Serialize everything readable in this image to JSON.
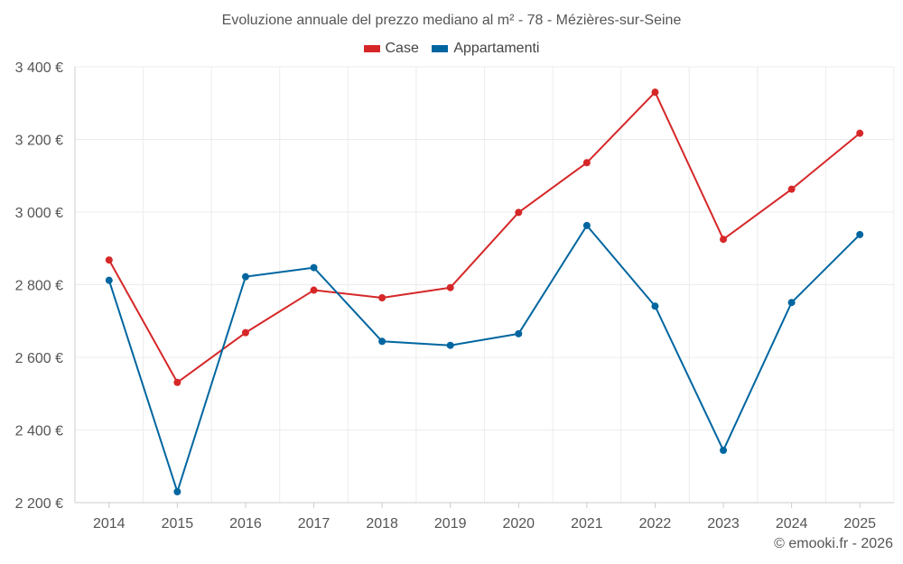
{
  "chart_data": {
    "type": "line",
    "title": "Evoluzione annuale del prezzo mediano al m² - 78 - Mézières-sur-Seine",
    "categories": [
      "2014",
      "2015",
      "2016",
      "2017",
      "2018",
      "2019",
      "2020",
      "2021",
      "2022",
      "2023",
      "2024",
      "2025"
    ],
    "series": [
      {
        "name": "Case",
        "color": "#d62728",
        "values": [
          2868,
          2531,
          2668,
          2785,
          2764,
          2792,
          2999,
          3136,
          3330,
          2925,
          3063,
          3217
        ]
      },
      {
        "name": "Appartamenti",
        "color": "#0066a0",
        "values": [
          2812,
          2230,
          2822,
          2847,
          2644,
          2633,
          2665,
          2963,
          2741,
          2344,
          2751,
          2938
        ]
      }
    ],
    "ylim": [
      2200,
      3400
    ],
    "yticks": [
      2200,
      2400,
      2600,
      2800,
      3000,
      3200,
      3400
    ],
    "ytick_labels": [
      "2 200 €",
      "2 400 €",
      "2 600 €",
      "2 800 €",
      "3 000 €",
      "3 200 €",
      "3 400 €"
    ],
    "grid": true,
    "legend_position": "top-center",
    "xlabel": "",
    "ylabel": ""
  },
  "copyright": "© emooki.fr - 2026"
}
